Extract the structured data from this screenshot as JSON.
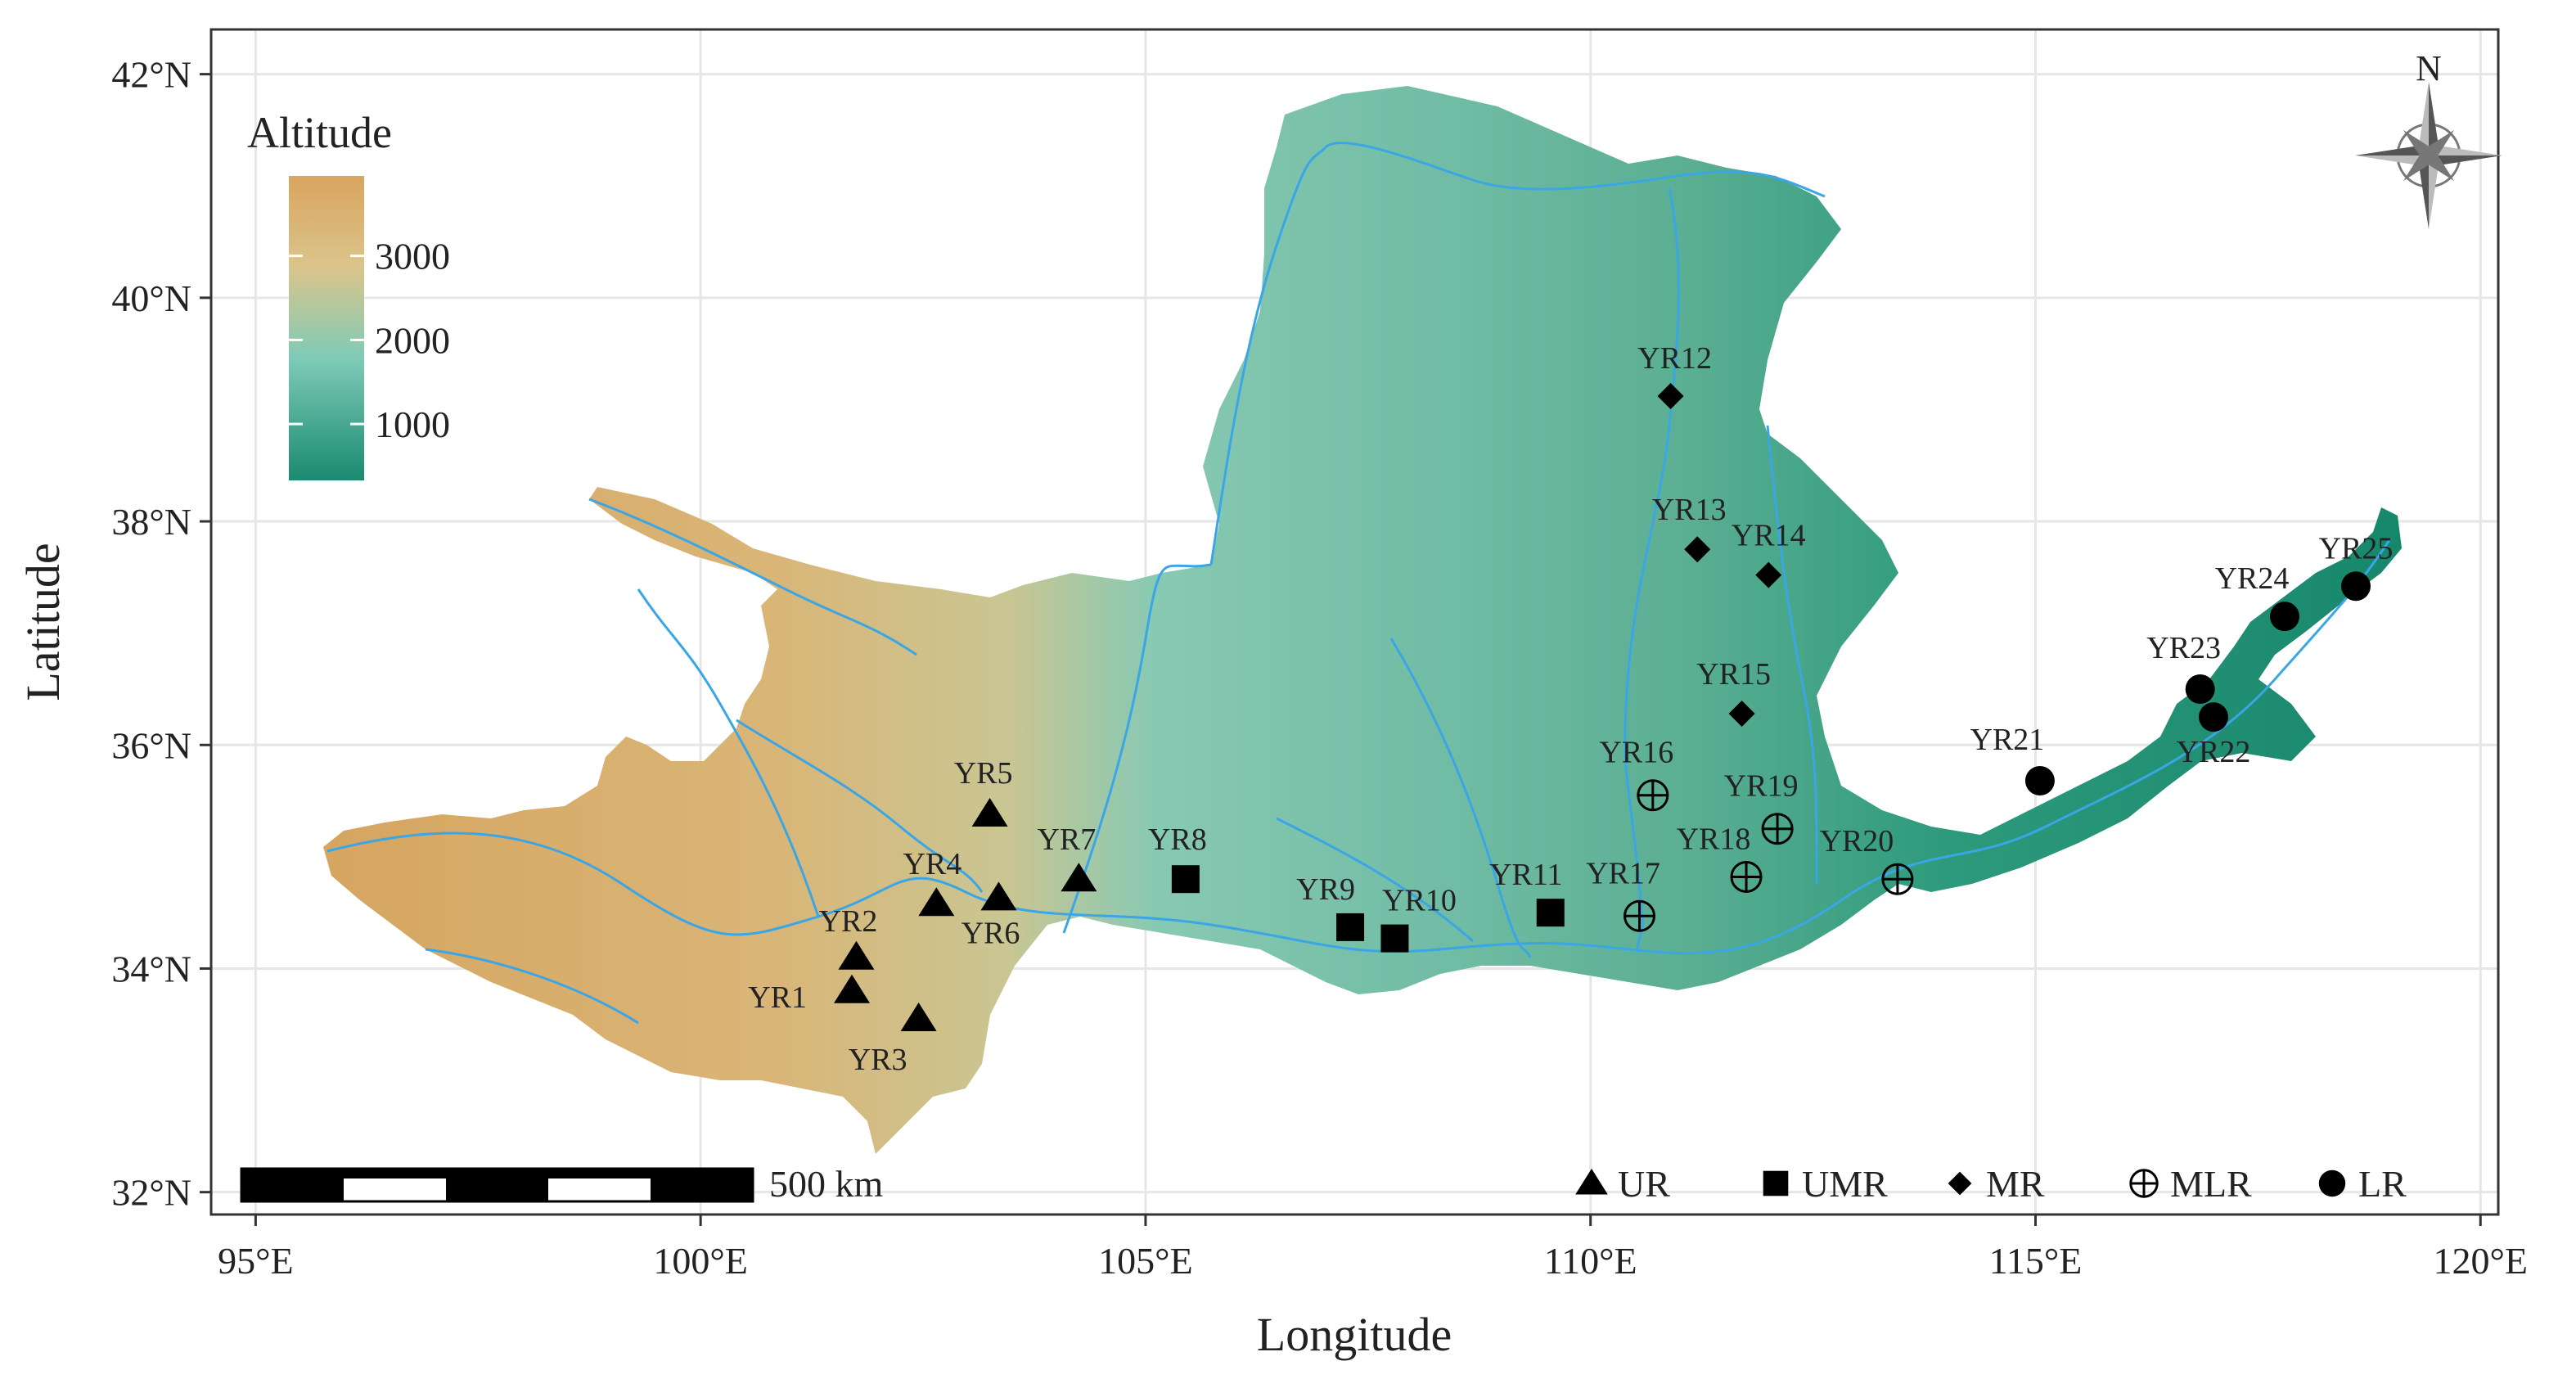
{
  "map": {
    "xlabel": "Longitude",
    "ylabel": "Latitude",
    "xlim": [
      94.5,
      120.2
    ],
    "ylim": [
      31.8,
      42.4
    ],
    "x_ticks": [
      {
        "value": 95,
        "label": "95°E"
      },
      {
        "value": 100,
        "label": "100°E"
      },
      {
        "value": 105,
        "label": "105°E"
      },
      {
        "value": 110,
        "label": "110°E"
      },
      {
        "value": 115,
        "label": "115°E"
      },
      {
        "value": 120,
        "label": "120°E"
      }
    ],
    "y_ticks": [
      {
        "value": 32,
        "label": "32°N"
      },
      {
        "value": 34,
        "label": "34°N"
      },
      {
        "value": 36,
        "label": "36°N"
      },
      {
        "value": 38,
        "label": "38°N"
      },
      {
        "value": 40,
        "label": "40°N"
      },
      {
        "value": 42,
        "label": "42°N"
      }
    ],
    "grid": true
  },
  "altitude_legend": {
    "title": "Altitude",
    "values": [
      {
        "value": 3000,
        "label": "3000"
      },
      {
        "value": 2000,
        "label": "2000"
      },
      {
        "value": 1000,
        "label": "1000"
      }
    ],
    "colors": {
      "high": "#d9a55e",
      "mid_high": "#dbc48b",
      "mid": "#7ecbb7",
      "low": "#1a8a70"
    }
  },
  "scale_bar": {
    "label": "500 km"
  },
  "north_arrow": {
    "label": "N"
  },
  "categories": [
    {
      "key": "UR",
      "label": "UR",
      "shape": "triangle"
    },
    {
      "key": "UMR",
      "label": "UMR",
      "shape": "square"
    },
    {
      "key": "MR",
      "label": "MR",
      "shape": "diamond"
    },
    {
      "key": "MLR",
      "label": "MLR",
      "shape": "crossed-circle"
    },
    {
      "key": "LR",
      "label": "LR",
      "shape": "circle"
    }
  ],
  "sites": [
    {
      "label": "YR1",
      "lon": 101.7,
      "lat": 33.8,
      "cat": "UR"
    },
    {
      "label": "YR2",
      "lon": 101.75,
      "lat": 34.1,
      "cat": "UR"
    },
    {
      "label": "YR3",
      "lon": 102.45,
      "lat": 33.55,
      "cat": "UR"
    },
    {
      "label": "YR4",
      "lon": 102.65,
      "lat": 34.58,
      "cat": "UR"
    },
    {
      "label": "YR5",
      "lon": 103.25,
      "lat": 35.38,
      "cat": "UR"
    },
    {
      "label": "YR6",
      "lon": 103.35,
      "lat": 34.63,
      "cat": "UR"
    },
    {
      "label": "YR7",
      "lon": 104.25,
      "lat": 34.8,
      "cat": "UR"
    },
    {
      "label": "YR8",
      "lon": 105.45,
      "lat": 34.8,
      "cat": "UMR"
    },
    {
      "label": "YR9",
      "lon": 107.3,
      "lat": 34.37,
      "cat": "UMR"
    },
    {
      "label": "YR10",
      "lon": 107.8,
      "lat": 34.27,
      "cat": "UMR"
    },
    {
      "label": "YR11",
      "lon": 109.55,
      "lat": 34.5,
      "cat": "UMR"
    },
    {
      "label": "YR12",
      "lon": 110.9,
      "lat": 39.12,
      "cat": "MR"
    },
    {
      "label": "YR13",
      "lon": 111.2,
      "lat": 37.75,
      "cat": "MR"
    },
    {
      "label": "YR14",
      "lon": 112.0,
      "lat": 37.52,
      "cat": "MR"
    },
    {
      "label": "YR15",
      "lon": 111.7,
      "lat": 36.28,
      "cat": "MR"
    },
    {
      "label": "YR16",
      "lon": 110.7,
      "lat": 35.55,
      "cat": "MLR"
    },
    {
      "label": "YR17",
      "lon": 110.55,
      "lat": 34.47,
      "cat": "MLR"
    },
    {
      "label": "YR18",
      "lon": 111.75,
      "lat": 34.82,
      "cat": "MLR"
    },
    {
      "label": "YR19",
      "lon": 112.1,
      "lat": 35.25,
      "cat": "MLR"
    },
    {
      "label": "YR20",
      "lon": 113.45,
      "lat": 34.8,
      "cat": "MLR"
    },
    {
      "label": "YR21",
      "lon": 115.05,
      "lat": 35.68,
      "cat": "LR"
    },
    {
      "label": "YR22",
      "lon": 117.0,
      "lat": 36.25,
      "cat": "LR"
    },
    {
      "label": "YR23",
      "lon": 116.85,
      "lat": 36.5,
      "cat": "LR"
    },
    {
      "label": "YR24",
      "lon": 117.8,
      "lat": 37.15,
      "cat": "LR"
    },
    {
      "label": "YR25",
      "lon": 118.6,
      "lat": 37.42,
      "cat": "LR"
    }
  ]
}
